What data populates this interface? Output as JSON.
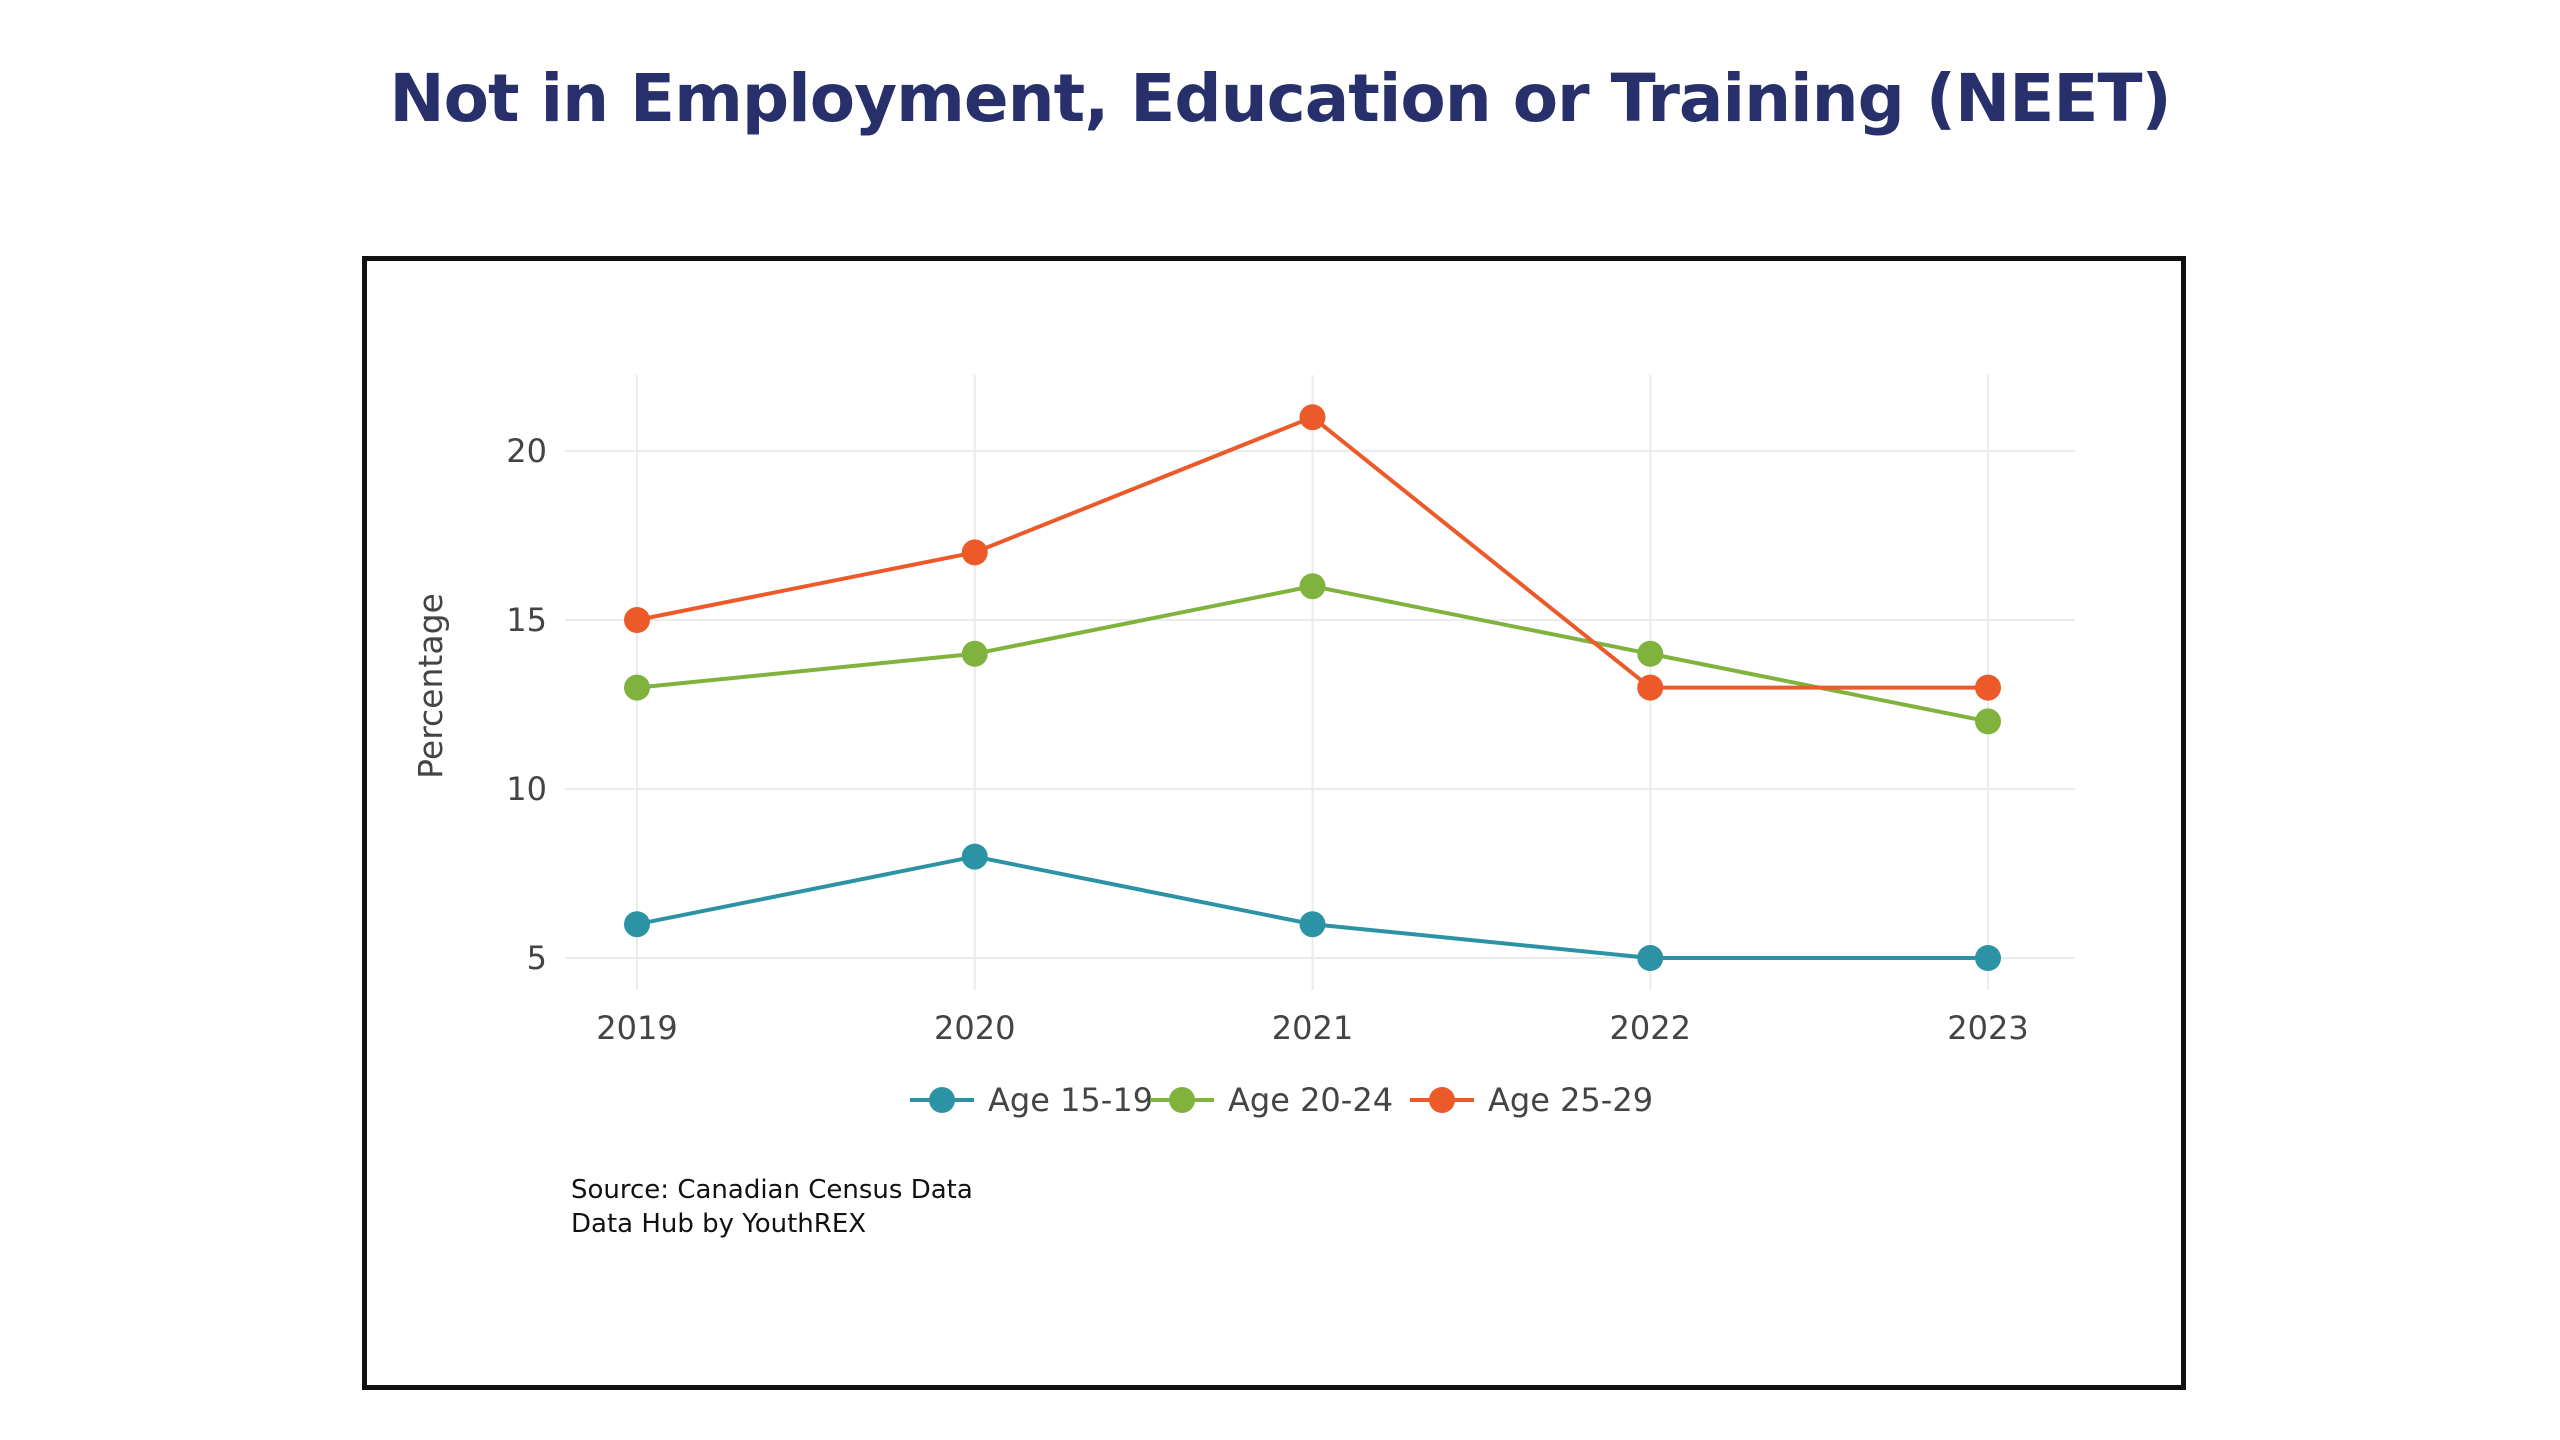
{
  "title": "Not in Employment, Education or Training (NEET)",
  "source": {
    "line1": "Source: Canadian Census Data",
    "line2": "Data Hub by YouthREX"
  },
  "chart_data": {
    "type": "line",
    "x": [
      "2019",
      "2020",
      "2021",
      "2022",
      "2023"
    ],
    "ylabel": "Percentage",
    "xlabel": "",
    "yticks": [
      5,
      10,
      15,
      20
    ],
    "ylim": [
      4,
      22
    ],
    "grid": true,
    "legend_position": "bottom",
    "series": [
      {
        "name": "Age 15-19",
        "color": "#2b93a4",
        "values": [
          6,
          8,
          6,
          5,
          5
        ]
      },
      {
        "name": "Age 20-24",
        "color": "#80b23e",
        "values": [
          13,
          14,
          16,
          14,
          12
        ]
      },
      {
        "name": "Age 25-29",
        "color": "#ec5a2a",
        "values": [
          15,
          17,
          21,
          13,
          13
        ]
      }
    ]
  }
}
